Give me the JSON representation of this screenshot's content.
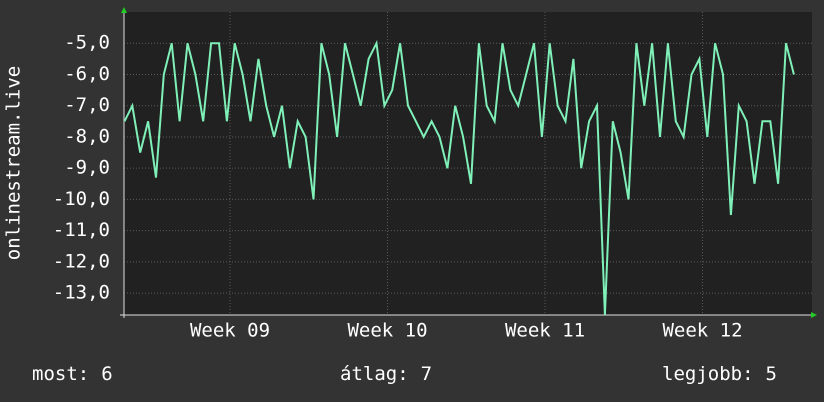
{
  "chart_data": {
    "type": "line",
    "y_label": "onlinestream.live",
    "x": [
      8.33,
      8.38,
      8.43,
      8.48,
      8.53,
      8.58,
      8.63,
      8.68,
      8.73,
      8.78,
      8.83,
      8.88,
      8.93,
      8.98,
      9.03,
      9.08,
      9.13,
      9.18,
      9.23,
      9.28,
      9.33,
      9.38,
      9.43,
      9.48,
      9.53,
      9.58,
      9.63,
      9.68,
      9.73,
      9.78,
      9.83,
      9.88,
      9.93,
      9.98,
      10.03,
      10.08,
      10.13,
      10.18,
      10.23,
      10.28,
      10.33,
      10.38,
      10.43,
      10.48,
      10.53,
      10.58,
      10.63,
      10.68,
      10.73,
      10.78,
      10.83,
      10.88,
      10.93,
      10.98,
      11.03,
      11.08,
      11.13,
      11.18,
      11.23,
      11.28,
      11.33,
      11.38,
      11.43,
      11.48,
      11.53,
      11.58,
      11.63,
      11.68,
      11.73,
      11.78,
      11.83,
      11.88,
      11.93,
      11.98,
      12.03,
      12.08,
      12.13,
      12.18,
      12.23,
      12.28,
      12.33,
      12.38,
      12.43,
      12.48,
      12.53,
      12.58
    ],
    "series": [
      {
        "color": "#7ff0b8",
        "values": [
          -7.5,
          -7,
          -8.5,
          -7.5,
          -9.3,
          -6,
          -5,
          -7.5,
          -5,
          -6,
          -7.5,
          -5,
          -5,
          -7.5,
          -5,
          -6,
          -7.5,
          -5.5,
          -7,
          -8,
          -7,
          -9,
          -7.5,
          -8,
          -10,
          -5,
          -6,
          -8,
          -5,
          -6,
          -7,
          -5.5,
          -5,
          -7,
          -6.5,
          -5,
          -7,
          -7.5,
          -8,
          -7.5,
          -8,
          -9,
          -7,
          -8,
          -9.5,
          -5,
          -7,
          -7.5,
          -5,
          -6.5,
          -7,
          -6,
          -5,
          -8,
          -5,
          -7,
          -7.5,
          -5.5,
          -9,
          -7.5,
          -7,
          -13.7,
          -7.5,
          -8.5,
          -10,
          -5,
          -7,
          -5,
          -8,
          -5,
          -7.5,
          -8,
          -6,
          -5.5,
          -8,
          -5,
          -6,
          -10.5,
          -7,
          -7.5,
          -9.5,
          -7.5,
          -7.5,
          -9.5,
          -5,
          -6
        ]
      }
    ],
    "xlim": [
      8.327,
      12.695
    ],
    "xticks": [
      {
        "value": 9,
        "label": "Week 09"
      },
      {
        "value": 10,
        "label": "Week 10"
      },
      {
        "value": 11,
        "label": "Week 11"
      },
      {
        "value": 12,
        "label": "Week 12"
      }
    ],
    "ylim": [
      -13.7,
      -4
    ],
    "yticks": [
      {
        "value": -5,
        "label": "-5,0"
      },
      {
        "value": -6,
        "label": "-6,0"
      },
      {
        "value": -7,
        "label": "-7,0"
      },
      {
        "value": -8,
        "label": "-8,0"
      },
      {
        "value": -9,
        "label": "-9,0"
      },
      {
        "value": -10,
        "label": "-10,0"
      },
      {
        "value": -11,
        "label": "-11,0"
      },
      {
        "value": -12,
        "label": "-12,0"
      },
      {
        "value": -13,
        "label": "-13,0"
      }
    ],
    "grid": true,
    "stats": [
      {
        "label": "most:",
        "value": 6
      },
      {
        "label": "átlag:",
        "value": 7
      },
      {
        "label": "legjobb:",
        "value": 5
      }
    ]
  }
}
